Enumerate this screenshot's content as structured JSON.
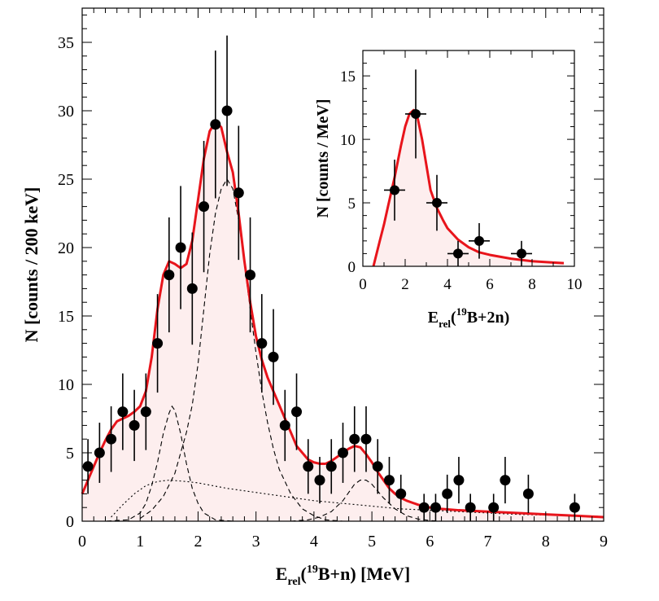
{
  "chart_data": [
    {
      "type": "scatter",
      "panel": "main",
      "xlabel": {
        "main": "E",
        "sub": "rel",
        "open": "(",
        "sup": "19",
        "rest": "B+n) [MeV]"
      },
      "ylabel": "N [counts / 200 keV]",
      "xlim": [
        0,
        9
      ],
      "ylim": [
        0,
        37.5
      ],
      "xticks": [
        "0",
        "1",
        "2",
        "3",
        "4",
        "5",
        "6",
        "7",
        "8",
        "9"
      ],
      "yticks": [
        "0",
        "5",
        "10",
        "15",
        "20",
        "25",
        "30",
        "35"
      ],
      "grid": false,
      "colors": {
        "fit": "#e8141b",
        "fill": "#fdeeee",
        "points": "#000000",
        "components": "#000000"
      },
      "series": [
        {
          "role": "data",
          "x": [
            0.1,
            0.3,
            0.5,
            0.7,
            0.9,
            1.1,
            1.3,
            1.5,
            1.7,
            1.9,
            2.1,
            2.3,
            2.5,
            2.7,
            2.9,
            3.1,
            3.3,
            3.5,
            3.7,
            3.9,
            4.1,
            4.3,
            4.5,
            4.7,
            4.9,
            5.1,
            5.3,
            5.5,
            5.9,
            6.1,
            6.3,
            6.5,
            6.7,
            7.1,
            7.3,
            7.7,
            8.5
          ],
          "y": [
            4,
            5,
            6,
            8,
            7,
            8,
            13,
            18,
            20,
            17,
            23,
            29,
            30,
            24,
            18,
            13,
            12,
            7,
            8,
            4,
            3,
            4,
            5,
            6,
            6,
            4,
            3,
            2,
            1,
            1,
            2,
            3,
            1,
            1,
            3,
            2,
            1
          ],
          "err": [
            2.0,
            2.2,
            2.4,
            2.8,
            2.6,
            2.8,
            3.6,
            4.2,
            4.5,
            4.1,
            4.8,
            5.4,
            5.5,
            4.9,
            4.2,
            3.6,
            3.5,
            2.6,
            2.8,
            2.0,
            1.7,
            2.0,
            2.2,
            2.4,
            2.4,
            2.0,
            1.7,
            1.4,
            1.0,
            1.0,
            1.4,
            1.7,
            1.0,
            1.0,
            1.7,
            1.4,
            1.0
          ]
        },
        {
          "role": "total-fit",
          "x": [
            0,
            0.1,
            0.2,
            0.3,
            0.4,
            0.5,
            0.6,
            0.7,
            0.8,
            0.9,
            1.0,
            1.1,
            1.2,
            1.3,
            1.4,
            1.5,
            1.6,
            1.7,
            1.8,
            1.9,
            2.0,
            2.1,
            2.2,
            2.3,
            2.4,
            2.5,
            2.6,
            2.7,
            2.8,
            2.9,
            3.0,
            3.1,
            3.2,
            3.3,
            3.4,
            3.5,
            3.6,
            3.7,
            3.8,
            3.9,
            4.0,
            4.1,
            4.2,
            4.3,
            4.4,
            4.5,
            4.6,
            4.7,
            4.8,
            4.9,
            5.0,
            5.1,
            5.2,
            5.3,
            5.4,
            5.5,
            5.6,
            5.8,
            6.0,
            6.2,
            6.5,
            7.0,
            7.5,
            8.0,
            8.5,
            9.0
          ],
          "y": [
            2.0,
            3.0,
            4.0,
            5.0,
            5.9,
            6.7,
            7.3,
            7.5,
            7.7,
            8.0,
            8.4,
            9.5,
            12.0,
            15.5,
            18.0,
            19.0,
            18.8,
            18.5,
            18.8,
            20.5,
            23.5,
            26.5,
            28.5,
            29.2,
            28.8,
            27.0,
            25.5,
            22.5,
            19.0,
            16.0,
            13.5,
            11.8,
            10.5,
            9.5,
            8.5,
            7.5,
            6.5,
            5.5,
            5.0,
            4.5,
            4.3,
            4.2,
            4.2,
            4.4,
            4.7,
            5.0,
            5.3,
            5.5,
            5.4,
            4.9,
            4.3,
            3.6,
            3.0,
            2.4,
            2.0,
            1.7,
            1.5,
            1.2,
            1.0,
            0.9,
            0.8,
            0.7,
            0.6,
            0.5,
            0.4,
            0.3
          ]
        },
        {
          "role": "component-dashed",
          "x": [
            0,
            0.4,
            0.8,
            1.0,
            1.1,
            1.2,
            1.3,
            1.4,
            1.5,
            1.55,
            1.6,
            1.7,
            1.8,
            1.9,
            2.0,
            2.1,
            2.3,
            2.6,
            3.0
          ],
          "y": [
            0,
            0,
            0.1,
            0.6,
            1.3,
            2.6,
            4.3,
            6.4,
            7.9,
            8.4,
            8.1,
            6.4,
            4.2,
            2.4,
            1.3,
            0.6,
            0.1,
            0,
            0
          ]
        },
        {
          "role": "component-dashed",
          "x": [
            1.0,
            1.2,
            1.4,
            1.6,
            1.8,
            1.9,
            2.0,
            2.1,
            2.2,
            2.3,
            2.4,
            2.5,
            2.6,
            2.7,
            2.8,
            2.9,
            3.0,
            3.1,
            3.2,
            3.3,
            3.4,
            3.6,
            3.8,
            4.0,
            4.2,
            4.5
          ],
          "y": [
            0.2,
            0.8,
            1.8,
            3.5,
            6.5,
            8.5,
            11.5,
            15.5,
            19.5,
            22.5,
            24.3,
            25.0,
            24.3,
            22.0,
            18.8,
            15.5,
            12.3,
            9.5,
            7.2,
            5.3,
            3.8,
            2.0,
            0.9,
            0.4,
            0.1,
            0
          ]
        },
        {
          "role": "component-dashed",
          "x": [
            3.6,
            3.9,
            4.1,
            4.3,
            4.5,
            4.6,
            4.7,
            4.8,
            4.9,
            5.0,
            5.1,
            5.2,
            5.4,
            5.6,
            5.8,
            6.0,
            6.2,
            6.5
          ],
          "y": [
            0,
            0.1,
            0.3,
            0.7,
            1.5,
            2.1,
            2.7,
            3.0,
            3.0,
            2.7,
            2.2,
            1.7,
            0.9,
            0.4,
            0.15,
            0.05,
            0,
            0
          ]
        },
        {
          "role": "component-dotted",
          "x": [
            0.5,
            0.7,
            0.9,
            1.1,
            1.3,
            1.5,
            1.8,
            2.0,
            2.5,
            3.0,
            3.5,
            4.0,
            4.5,
            5.0,
            5.5,
            6.0,
            6.5,
            7.0,
            7.5,
            8.0,
            8.5,
            9.0
          ],
          "y": [
            0.3,
            1.2,
            2.0,
            2.6,
            2.9,
            3.0,
            2.9,
            2.8,
            2.4,
            2.1,
            1.8,
            1.5,
            1.3,
            1.1,
            0.9,
            0.8,
            0.7,
            0.6,
            0.5,
            0.45,
            0.4,
            0.35
          ]
        }
      ]
    },
    {
      "type": "scatter",
      "panel": "inset",
      "xlabel": {
        "main": "E",
        "sub": "rel",
        "open": "(",
        "sup": "19",
        "rest": "B+2n)"
      },
      "ylabel": "N [counts / MeV]",
      "xlim": [
        0,
        10
      ],
      "ylim": [
        0,
        17
      ],
      "xticks": [
        "0",
        "2",
        "4",
        "6",
        "8",
        "10"
      ],
      "yticks": [
        "0",
        "5",
        "10",
        "15"
      ],
      "grid": false,
      "series": [
        {
          "role": "data",
          "x": [
            1.5,
            2.5,
            3.5,
            4.5,
            5.5,
            7.5
          ],
          "y": [
            6,
            12,
            5,
            1,
            2,
            1
          ],
          "xerr": [
            0.5,
            0.5,
            0.5,
            0.5,
            0.5,
            0.5
          ],
          "err": [
            2.4,
            3.5,
            2.2,
            1.0,
            1.4,
            1.0
          ]
        },
        {
          "role": "total-fit",
          "x": [
            0.5,
            0.8,
            1.0,
            1.2,
            1.5,
            1.8,
            2.0,
            2.2,
            2.4,
            2.5,
            2.6,
            2.8,
            3.0,
            3.2,
            3.5,
            3.8,
            4.0,
            4.5,
            5.0,
            5.5,
            6.0,
            7.0,
            8.0,
            9.0,
            9.5
          ],
          "y": [
            0,
            2.0,
            3.3,
            4.8,
            7.0,
            9.5,
            11.0,
            12.0,
            12.3,
            12.1,
            11.6,
            10.0,
            8.0,
            6.0,
            4.6,
            3.6,
            3.0,
            2.1,
            1.5,
            1.1,
            0.9,
            0.6,
            0.4,
            0.3,
            0.25
          ]
        }
      ]
    }
  ]
}
